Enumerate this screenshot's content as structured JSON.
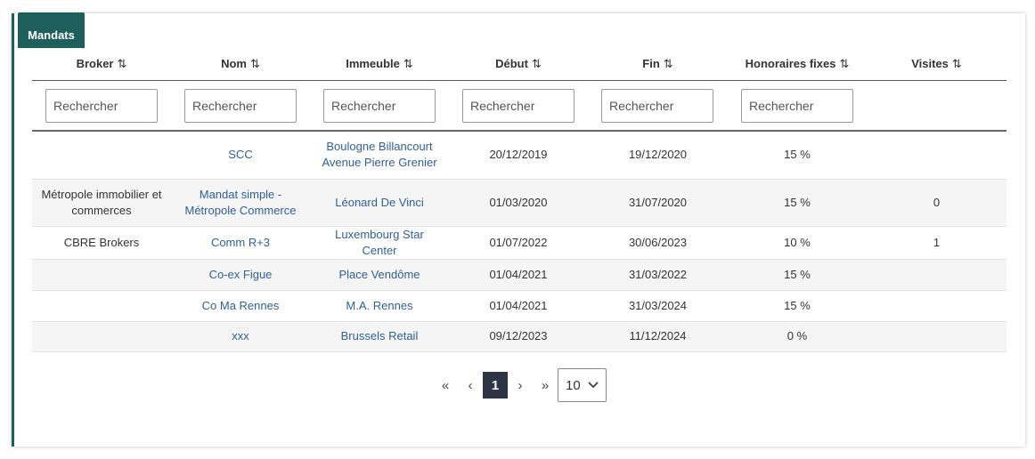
{
  "card": {
    "title": "Mandats"
  },
  "table": {
    "headers": [
      "Broker",
      "Nom",
      "Immeuble",
      "Début",
      "Fin",
      "Honoraires fixes",
      "Visites"
    ],
    "sort_icon": "⇅",
    "search_placeholder": "Rechercher",
    "rows": [
      {
        "broker": "",
        "nom": "SCC",
        "immeuble": "Boulogne Billancourt Avenue Pierre Grenier",
        "debut": "20/12/2019",
        "fin": "19/12/2020",
        "honoraires": "15 %",
        "visites": ""
      },
      {
        "broker": "Métropole immobilier et commerces",
        "nom": "Mandat simple - Métropole Commerce",
        "immeuble": "Léonard De Vinci",
        "debut": "01/03/2020",
        "fin": "31/07/2020",
        "honoraires": "15 %",
        "visites": "0"
      },
      {
        "broker": "CBRE Brokers",
        "nom": "Comm R+3",
        "immeuble": "Luxembourg Star Center",
        "debut": "01/07/2022",
        "fin": "30/06/2023",
        "honoraires": "10 %",
        "visites": "1"
      },
      {
        "broker": "",
        "nom": "Co-ex Figue",
        "immeuble": "Place Vendôme",
        "debut": "01/04/2021",
        "fin": "31/03/2022",
        "honoraires": "15 %",
        "visites": ""
      },
      {
        "broker": "",
        "nom": "Co Ma Rennes",
        "immeuble": "M.A. Rennes",
        "debut": "01/04/2021",
        "fin": "31/03/2024",
        "honoraires": "15 %",
        "visites": ""
      },
      {
        "broker": "",
        "nom": "xxx",
        "immeuble": "Brussels Retail",
        "debut": "09/12/2023",
        "fin": "11/12/2024",
        "honoraires": "0 %",
        "visites": ""
      }
    ]
  },
  "pagination": {
    "first": "«",
    "prev": "‹",
    "current": "1",
    "next": "›",
    "last": "»",
    "page_size": "10",
    "page_size_icon": "chevron-down-icon"
  },
  "colors": {
    "accent": "#1f5f5b",
    "link": "#2e5f95",
    "active_page": "#2c3446"
  }
}
